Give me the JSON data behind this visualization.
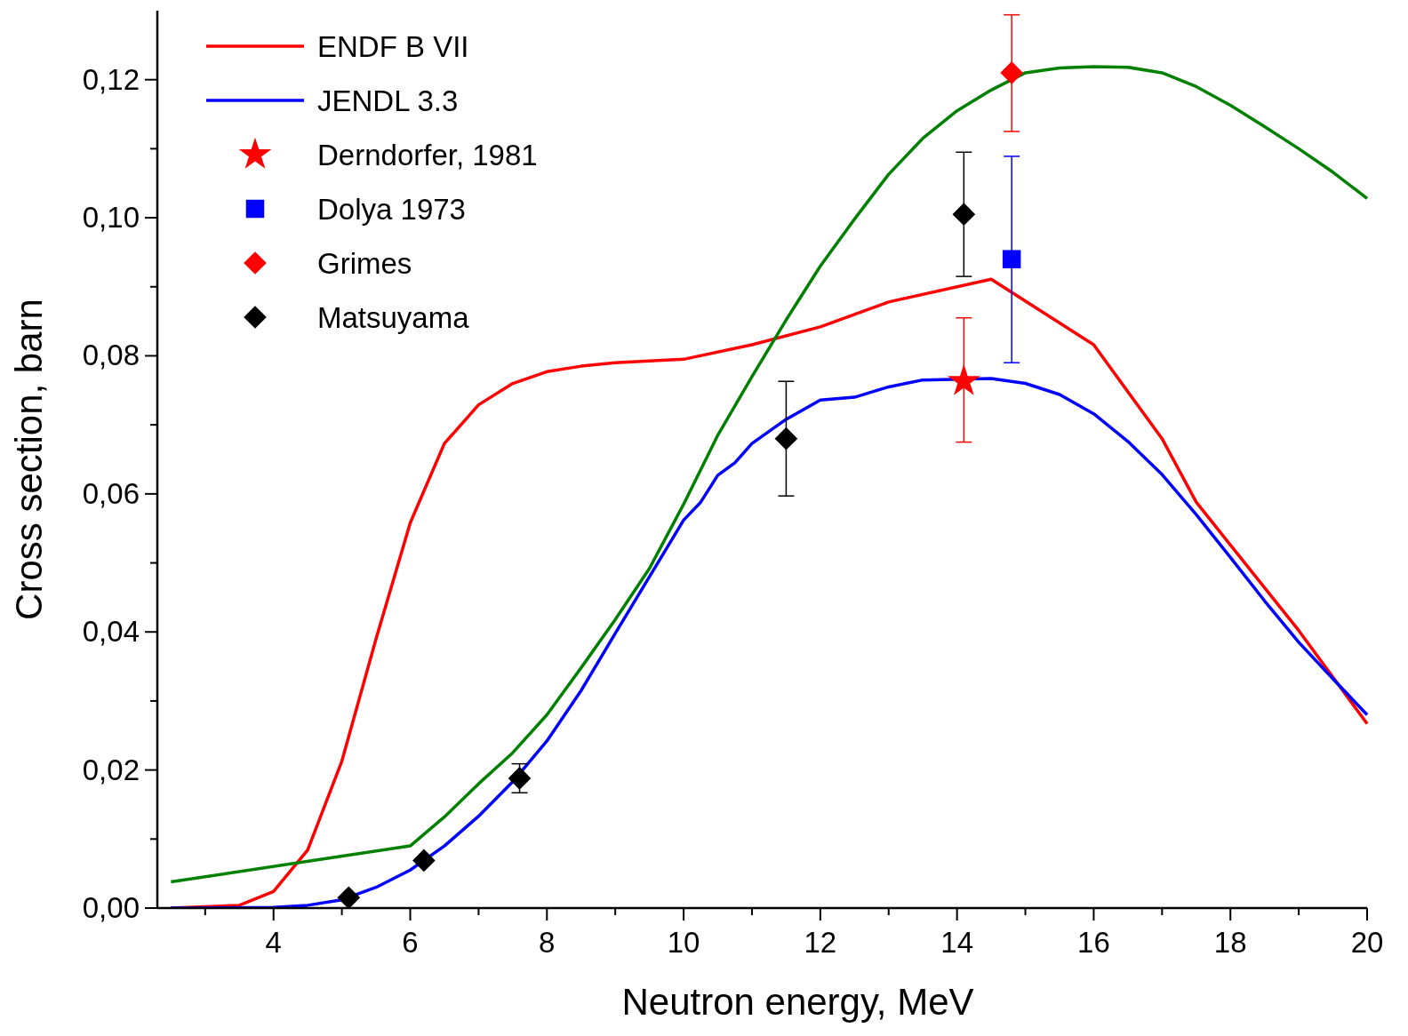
{
  "chart_data": {
    "type": "line",
    "xlabel": "Neutron energy, MeV",
    "ylabel": "Cross section, barn",
    "xlim": [
      2.3,
      20
    ],
    "xticks": [
      {
        "value": 3,
        "label": null
      },
      4,
      {
        "value": 5,
        "label": null
      },
      6,
      {
        "value": 7,
        "label": null
      },
      8,
      {
        "value": 9,
        "label": null
      },
      10,
      {
        "value": 11,
        "label": null
      },
      12,
      {
        "value": 13,
        "label": null
      },
      14,
      {
        "value": 15,
        "label": null
      },
      16,
      {
        "value": 17,
        "label": null
      },
      18,
      {
        "value": 19,
        "label": null
      },
      20
    ],
    "ylim": [
      0,
      0.13
    ],
    "yticks": [
      {
        "value": 0,
        "label": "0,00"
      },
      {
        "value": 0.01,
        "label": null
      },
      {
        "value": 0.02,
        "label": "0,02"
      },
      {
        "value": 0.03,
        "label": null
      },
      {
        "value": 0.04,
        "label": "0,04"
      },
      {
        "value": 0.05,
        "label": null
      },
      {
        "value": 0.06,
        "label": "0,06"
      },
      {
        "value": 0.07,
        "label": null
      },
      {
        "value": 0.08,
        "label": "0,08"
      },
      {
        "value": 0.09,
        "label": null
      },
      {
        "value": 0.1,
        "label": "0,10"
      },
      {
        "value": 0.11,
        "label": null
      },
      {
        "value": 0.12,
        "label": "0,12"
      }
    ],
    "grid": false,
    "legend": "top left",
    "marker": "none",
    "line_style": "solid",
    "series": [
      {
        "name": "ENDF B VII",
        "color": "#ff0000",
        "x": [
          2.5,
          3.5,
          4,
          4.5,
          5,
          5.5,
          6,
          6.5,
          7,
          7.5,
          8,
          8.5,
          9,
          10,
          11,
          12,
          13,
          14.5,
          16,
          17,
          17.5,
          18,
          19,
          20
        ],
        "values": [
          0,
          0.0004,
          0.0024,
          0.0084,
          0.0213,
          0.039,
          0.0558,
          0.0673,
          0.0729,
          0.076,
          0.0777,
          0.0785,
          0.079,
          0.0795,
          0.0816,
          0.0842,
          0.0878,
          0.0911,
          0.0816,
          0.068,
          0.0588,
          0.0526,
          0.0402,
          0.0267
        ]
      },
      {
        "name": "JENDL 3.3",
        "color": "#0000ff",
        "x": [
          2.5,
          3,
          4,
          4.5,
          5,
          5.5,
          6,
          6.5,
          7,
          7.5,
          8,
          8.5,
          9,
          9.5,
          10,
          10.25,
          10.5,
          10.75,
          11,
          11.5,
          12,
          12.5,
          13,
          13.5,
          14.5,
          15,
          15.5,
          16,
          16.5,
          17,
          17.5,
          18,
          18.5,
          19,
          19.5,
          20
        ],
        "values": [
          0,
          0,
          0.0001,
          0.0004,
          0.0012,
          0.003,
          0.0055,
          0.009,
          0.0133,
          0.0183,
          0.0242,
          0.0315,
          0.0398,
          0.048,
          0.0562,
          0.0588,
          0.0627,
          0.0645,
          0.0673,
          0.0708,
          0.0736,
          0.074,
          0.0755,
          0.0765,
          0.0767,
          0.076,
          0.0744,
          0.0716,
          0.0676,
          0.0628,
          0.057,
          0.0508,
          0.0445,
          0.0385,
          0.0332,
          0.028
        ]
      },
      {
        "color": "#008000",
        "x": [
          2.5,
          6,
          6.5,
          7,
          7.5,
          8,
          8.5,
          9,
          9.5,
          10,
          10.5,
          11,
          11.5,
          12,
          12.5,
          13,
          13.5,
          14,
          14.5,
          15,
          15.5,
          16,
          16.5,
          17,
          17.5,
          18,
          18.5,
          19,
          19.5,
          20
        ],
        "values": [
          0.0038,
          0.009,
          0.0132,
          0.018,
          0.0225,
          0.028,
          0.0348,
          0.0418,
          0.0492,
          0.0585,
          0.0685,
          0.077,
          0.0852,
          0.093,
          0.0998,
          0.1063,
          0.1115,
          0.1155,
          0.1185,
          0.121,
          0.1217,
          0.1219,
          0.1218,
          0.121,
          0.119,
          0.1163,
          0.1132,
          0.11,
          0.1066,
          0.1028
        ]
      },
      {
        "name": "Derndorfer, 1981",
        "type": "scatter",
        "marker": "star",
        "color": "#ff0000",
        "x": [
          14.1
        ],
        "values": [
          0.0763
        ],
        "errors": [
          [
            0.0675,
            0.0855
          ]
        ]
      },
      {
        "name": "Dolya 1973",
        "type": "scatter",
        "marker": "square",
        "color": "#0000ff",
        "x": [
          14.8
        ],
        "values": [
          0.094
        ],
        "errors": [
          [
            0.079,
            0.1089
          ]
        ]
      },
      {
        "name": "Grimes",
        "type": "scatter",
        "marker": "diamond",
        "color": "#ff0000",
        "x": [
          14.8
        ],
        "values": [
          0.121
        ],
        "errors": [
          [
            0.1125,
            0.1294
          ]
        ]
      },
      {
        "name": "Matsuyama",
        "type": "scatter",
        "marker": "diamond",
        "color": "#000000",
        "x": [
          5.1,
          6.2,
          7.6,
          11.5,
          14.1
        ],
        "values": [
          0.0015,
          0.0069,
          0.0188,
          0.068,
          0.1005
        ],
        "errors": [
          null,
          null,
          [
            0.0167,
            0.0209
          ],
          [
            0.0597,
            0.0763
          ],
          [
            0.0915,
            0.1095
          ]
        ]
      }
    ]
  }
}
